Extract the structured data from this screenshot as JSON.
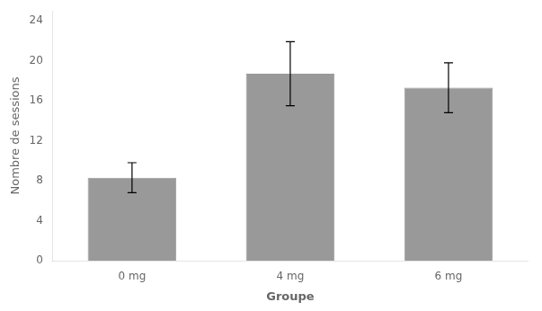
{
  "chart_data": {
    "type": "bar",
    "categories": [
      "0 mg",
      "4 mg",
      "6 mg"
    ],
    "values": [
      8.3,
      18.7,
      17.3
    ],
    "errors_upper": [
      1.5,
      3.2,
      2.5
    ],
    "errors_lower": [
      1.5,
      3.2,
      2.5
    ],
    "color": "#999999",
    "xlabel": "Groupe",
    "ylabel": "Nombre de sessions",
    "ylim": [
      0,
      25
    ],
    "yticks": [
      0,
      4,
      8,
      12,
      16,
      20,
      24
    ],
    "grid": false
  }
}
